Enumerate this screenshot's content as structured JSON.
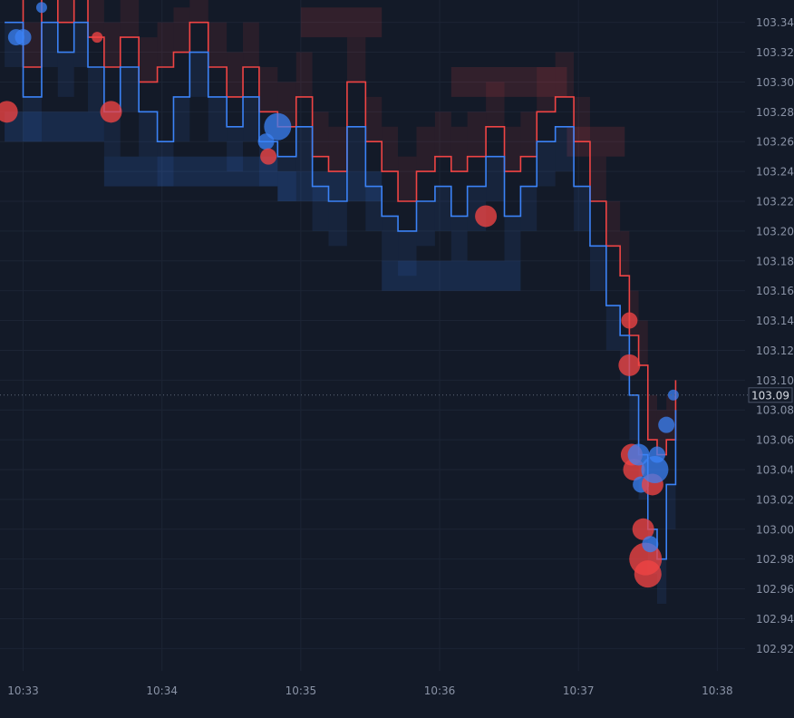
{
  "chart_data": {
    "type": "line",
    "subtype": "order-book heatmap with bid/ask price lines and trade bubbles",
    "title": "",
    "xlabel": "",
    "ylabel": "",
    "y_axis_position": "right",
    "grid": true,
    "ylim": [
      102.905,
      103.355
    ],
    "xlim": [
      "10:32:50",
      "10:38:12"
    ],
    "y_ticks": [
      "103.34",
      "103.32",
      "103.30",
      "103.28",
      "103.26",
      "103.24",
      "103.22",
      "103.20",
      "103.18",
      "103.16",
      "103.14",
      "103.12",
      "103.10",
      "103.08",
      "103.06",
      "103.04",
      "103.02",
      "103.00",
      "102.98",
      "102.96",
      "102.94",
      "102.92"
    ],
    "x_ticks": [
      "10:33",
      "10:34",
      "10:35",
      "10:36",
      "10:37",
      "10:38"
    ],
    "current_price": "103.09",
    "colors": {
      "background": "#131a28",
      "bid": "#3b82f6",
      "ask": "#ef4444",
      "grid": "#1c2434",
      "text": "#8a93a6",
      "current_price_line": "#5f6878"
    },
    "series": [
      {
        "role": "ask",
        "x": [
          "10:32:52",
          "10:33:00",
          "10:33:08",
          "10:33:15",
          "10:33:22",
          "10:33:28",
          "10:33:35",
          "10:33:42",
          "10:33:50",
          "10:33:58",
          "10:34:05",
          "10:34:12",
          "10:34:20",
          "10:34:28",
          "10:34:35",
          "10:34:42",
          "10:34:50",
          "10:34:58",
          "10:35:05",
          "10:35:12",
          "10:35:20",
          "10:35:28",
          "10:35:35",
          "10:35:42",
          "10:35:50",
          "10:35:58",
          "10:36:05",
          "10:36:12",
          "10:36:20",
          "10:36:28",
          "10:36:35",
          "10:36:42",
          "10:36:50",
          "10:36:58",
          "10:37:05",
          "10:37:12",
          "10:37:18",
          "10:37:22",
          "10:37:26",
          "10:37:30",
          "10:37:34",
          "10:37:38",
          "10:37:42"
        ],
        "values": [
          103.36,
          103.31,
          103.36,
          103.34,
          103.36,
          103.33,
          103.31,
          103.33,
          103.3,
          103.31,
          103.32,
          103.34,
          103.31,
          103.29,
          103.31,
          103.28,
          103.27,
          103.29,
          103.25,
          103.24,
          103.3,
          103.26,
          103.24,
          103.22,
          103.24,
          103.25,
          103.24,
          103.25,
          103.27,
          103.24,
          103.25,
          103.28,
          103.29,
          103.26,
          103.22,
          103.19,
          103.17,
          103.13,
          103.11,
          103.06,
          103.05,
          103.06,
          103.1
        ]
      },
      {
        "role": "bid",
        "x": [
          "10:32:52",
          "10:33:00",
          "10:33:08",
          "10:33:15",
          "10:33:22",
          "10:33:28",
          "10:33:35",
          "10:33:42",
          "10:33:50",
          "10:33:58",
          "10:34:05",
          "10:34:12",
          "10:34:20",
          "10:34:28",
          "10:34:35",
          "10:34:42",
          "10:34:50",
          "10:34:58",
          "10:35:05",
          "10:35:12",
          "10:35:20",
          "10:35:28",
          "10:35:35",
          "10:35:42",
          "10:35:50",
          "10:35:58",
          "10:36:05",
          "10:36:12",
          "10:36:20",
          "10:36:28",
          "10:36:35",
          "10:36:42",
          "10:36:50",
          "10:36:58",
          "10:37:05",
          "10:37:12",
          "10:37:18",
          "10:37:22",
          "10:37:26",
          "10:37:30",
          "10:37:34",
          "10:37:38",
          "10:37:42"
        ],
        "values": [
          103.34,
          103.29,
          103.34,
          103.32,
          103.34,
          103.31,
          103.28,
          103.31,
          103.28,
          103.26,
          103.29,
          103.32,
          103.29,
          103.27,
          103.29,
          103.26,
          103.25,
          103.27,
          103.23,
          103.22,
          103.27,
          103.23,
          103.21,
          103.2,
          103.22,
          103.23,
          103.21,
          103.23,
          103.25,
          103.21,
          103.23,
          103.26,
          103.27,
          103.23,
          103.19,
          103.15,
          103.13,
          103.09,
          103.05,
          103.0,
          102.98,
          103.03,
          103.08
        ]
      }
    ],
    "trades": [
      {
        "time": "10:32:53",
        "price": 103.28,
        "side": "sell",
        "size": 3
      },
      {
        "time": "10:32:57",
        "price": 103.33,
        "side": "buy",
        "size": 2
      },
      {
        "time": "10:33:00",
        "price": 103.33,
        "side": "buy",
        "size": 2
      },
      {
        "time": "10:33:08",
        "price": 103.35,
        "side": "buy",
        "size": 1
      },
      {
        "time": "10:33:32",
        "price": 103.33,
        "side": "sell",
        "size": 1
      },
      {
        "time": "10:33:38",
        "price": 103.28,
        "side": "sell",
        "size": 3
      },
      {
        "time": "10:34:45",
        "price": 103.26,
        "side": "buy",
        "size": 2
      },
      {
        "time": "10:34:46",
        "price": 103.25,
        "side": "sell",
        "size": 2
      },
      {
        "time": "10:34:50",
        "price": 103.27,
        "side": "buy",
        "size": 4
      },
      {
        "time": "10:36:20",
        "price": 103.21,
        "side": "sell",
        "size": 3
      },
      {
        "time": "10:37:22",
        "price": 103.14,
        "side": "sell",
        "size": 2
      },
      {
        "time": "10:37:22",
        "price": 103.11,
        "side": "sell",
        "size": 3
      },
      {
        "time": "10:37:23",
        "price": 103.05,
        "side": "sell",
        "size": 3
      },
      {
        "time": "10:37:24",
        "price": 103.04,
        "side": "sell",
        "size": 3
      },
      {
        "time": "10:37:26",
        "price": 103.05,
        "side": "buy",
        "size": 3
      },
      {
        "time": "10:37:27",
        "price": 103.03,
        "side": "buy",
        "size": 2
      },
      {
        "time": "10:37:28",
        "price": 103.0,
        "side": "sell",
        "size": 3
      },
      {
        "time": "10:37:29",
        "price": 102.98,
        "side": "sell",
        "size": 5
      },
      {
        "time": "10:37:30",
        "price": 102.97,
        "side": "sell",
        "size": 4
      },
      {
        "time": "10:37:31",
        "price": 102.99,
        "side": "buy",
        "size": 2
      },
      {
        "time": "10:37:32",
        "price": 103.03,
        "side": "sell",
        "size": 3
      },
      {
        "time": "10:37:33",
        "price": 103.04,
        "side": "buy",
        "size": 4
      },
      {
        "time": "10:37:34",
        "price": 103.05,
        "side": "buy",
        "size": 2
      },
      {
        "time": "10:37:38",
        "price": 103.07,
        "side": "buy",
        "size": 2
      },
      {
        "time": "10:37:41",
        "price": 103.09,
        "side": "buy",
        "size": 1
      }
    ],
    "liquidity_levels": [
      {
        "start": "10:32:52",
        "end": "10:33:35",
        "price": 103.28,
        "side": "bid"
      },
      {
        "start": "10:33:35",
        "end": "10:34:50",
        "price": 103.25,
        "side": "bid"
      },
      {
        "start": "10:34:50",
        "end": "10:35:35",
        "price": 103.24,
        "side": "bid"
      },
      {
        "start": "10:35:35",
        "end": "10:36:35",
        "price": 103.18,
        "side": "bid"
      },
      {
        "start": "10:33:20",
        "end": "10:34:30",
        "price": 103.36,
        "side": "ask"
      },
      {
        "start": "10:35:00",
        "end": "10:35:35",
        "price": 103.33,
        "side": "ask"
      },
      {
        "start": "10:36:05",
        "end": "10:36:55",
        "price": 103.29,
        "side": "ask"
      },
      {
        "start": "10:36:55",
        "end": "10:37:20",
        "price": 103.25,
        "side": "ask"
      }
    ]
  }
}
